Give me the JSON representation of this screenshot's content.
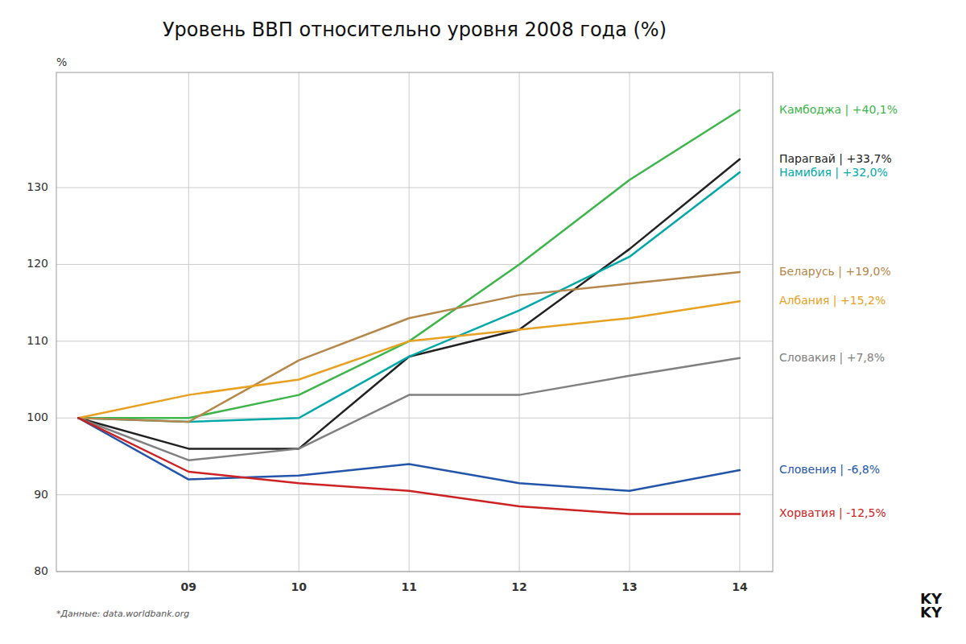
{
  "chart_data": {
    "type": "line",
    "title": "Уровень ВВП относительно уровня 2008 года (%)",
    "y_label": "%",
    "annotations": [
      "*Данные: data.worldbank.org",
      "KY\nKY"
    ],
    "x": [
      2008,
      2009,
      2010,
      2011,
      2012,
      2013,
      2014
    ],
    "xlim": [
      2007.8,
      2014.3
    ],
    "xticks": [
      {
        "value": 2009,
        "label": "09"
      },
      {
        "value": 2010,
        "label": "10"
      },
      {
        "value": 2011,
        "label": "11"
      },
      {
        "value": 2012,
        "label": "12"
      },
      {
        "value": 2013,
        "label": "13"
      },
      {
        "value": 2014,
        "label": "14"
      }
    ],
    "ylim": [
      80,
      145
    ],
    "yticks": [
      80,
      90,
      100,
      110,
      120,
      130
    ],
    "grid": true,
    "series": [
      {
        "name": "Камбоджа | +40,1%",
        "color": "#3cb54a",
        "values": [
          100,
          100,
          103,
          110,
          120,
          131,
          140.1
        ]
      },
      {
        "name": "Парагвай | +33,7%",
        "color": "#222222",
        "values": [
          100,
          96,
          96,
          108,
          111.5,
          122,
          133.7
        ]
      },
      {
        "name": "Намибия | +32,0%",
        "color": "#00a8a8",
        "values": [
          100,
          99.5,
          100,
          108,
          114,
          121,
          132.0
        ]
      },
      {
        "name": "Беларусь | +19,0%",
        "color": "#b5874a",
        "values": [
          100,
          99.5,
          107.5,
          113,
          116,
          117.5,
          119.0
        ]
      },
      {
        "name": "Албания | +15,2%",
        "color": "#e8a020",
        "values": [
          100,
          103,
          105,
          110.0,
          111.5,
          113,
          115.2
        ]
      },
      {
        "name": "Словакия | +7,8%",
        "color": "#808080",
        "values": [
          100,
          94.5,
          96,
          103,
          103,
          105.5,
          107.8
        ]
      },
      {
        "name": "Словения | -6,8%",
        "color": "#2255aa",
        "values": [
          100,
          92,
          92.5,
          94,
          91.5,
          90.5,
          93.2
        ]
      },
      {
        "name": "Хорватия | -12,5%",
        "color": "#cc2222",
        "values": [
          100,
          93,
          91.5,
          90.5,
          88.5,
          87.5,
          87.5
        ]
      }
    ]
  }
}
